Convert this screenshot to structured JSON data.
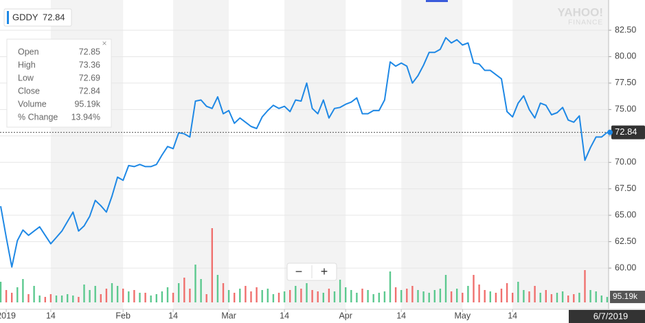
{
  "chart_data": {
    "type": "line",
    "categories": [
      null,
      "2019",
      null,
      null,
      null,
      null,
      null,
      null,
      null,
      "14",
      null,
      null,
      null,
      null,
      null,
      null,
      null,
      null,
      null,
      null,
      null,
      null,
      "Feb",
      null,
      null,
      null,
      null,
      null,
      null,
      null,
      null,
      "14",
      null,
      null,
      null,
      null,
      null,
      null,
      null,
      null,
      null,
      "Mar",
      null,
      null,
      null,
      null,
      null,
      null,
      null,
      null,
      null,
      "14",
      null,
      null,
      null,
      null,
      null,
      null,
      null,
      null,
      null,
      null,
      "Apr",
      null,
      null,
      null,
      null,
      null,
      null,
      null,
      null,
      null,
      "14",
      null,
      null,
      null,
      null,
      null,
      null,
      null,
      null,
      null,
      null,
      "May",
      null,
      null,
      null,
      null,
      null,
      null,
      null,
      null,
      "14",
      null,
      null,
      null,
      null,
      null,
      null,
      null,
      null,
      null,
      null,
      null,
      null,
      null,
      null,
      null,
      null,
      "6/7/2019"
    ],
    "series": [
      {
        "name": "GDDY",
        "color": "#1e88e5",
        "values": [
          65.85,
          62.9,
          60.1,
          62.6,
          63.6,
          63.1,
          63.5,
          63.9,
          63.1,
          62.3,
          62.9,
          63.5,
          64.4,
          65.3,
          63.5,
          64.0,
          64.9,
          66.4,
          65.9,
          65.3,
          66.8,
          68.6,
          68.3,
          69.7,
          69.6,
          69.8,
          69.6,
          69.6,
          69.8,
          70.7,
          71.5,
          71.3,
          72.8,
          72.7,
          72.4,
          75.8,
          75.9,
          75.3,
          75.1,
          76.2,
          74.6,
          74.9,
          73.7,
          74.2,
          73.8,
          73.4,
          73.2,
          74.3,
          74.9,
          75.4,
          75.1,
          75.3,
          74.8,
          75.9,
          75.8,
          77.5,
          75.1,
          74.6,
          75.9,
          74.2,
          75.1,
          75.2,
          75.5,
          75.7,
          76.1,
          74.6,
          74.6,
          74.9,
          74.9,
          75.9,
          79.5,
          79.1,
          79.4,
          79.1,
          77.5,
          78.2,
          79.2,
          80.4,
          80.4,
          80.7,
          81.8,
          81.3,
          81.6,
          81.1,
          81.3,
          79.4,
          79.3,
          78.7,
          78.7,
          78.3,
          77.9,
          74.8,
          74.3,
          75.6,
          76.3,
          75.0,
          74.2,
          75.6,
          75.4,
          74.5,
          74.7,
          75.2,
          74.0,
          73.8,
          74.4,
          70.2,
          71.4,
          72.4,
          72.4,
          72.84
        ]
      }
    ],
    "volume": {
      "values": [
        360000,
        216000,
        168000,
        264000,
        408000,
        144000,
        288000,
        120000,
        96000,
        144000,
        120000,
        120000,
        144000,
        120000,
        96000,
        312000,
        216000,
        288000,
        144000,
        240000,
        336000,
        288000,
        240000,
        192000,
        216000,
        168000,
        168000,
        120000,
        144000,
        192000,
        264000,
        168000,
        336000,
        432000,
        240000,
        660000,
        408000,
        144000,
        1296000,
        480000,
        336000,
        216000,
        168000,
        240000,
        288000,
        192000,
        264000,
        216000,
        240000,
        144000,
        168000,
        192000,
        216000,
        288000,
        240000,
        336000,
        216000,
        192000,
        168000,
        240000,
        192000,
        396000,
        264000,
        216000,
        168000,
        240000,
        216000,
        144000,
        168000,
        192000,
        540000,
        264000,
        216000,
        240000,
        288000,
        216000,
        192000,
        168000,
        216000,
        240000,
        480000,
        192000,
        240000,
        168000,
        288000,
        480000,
        312000,
        216000,
        192000,
        168000,
        240000,
        336000,
        168000,
        360000,
        216000,
        192000,
        288000,
        168000,
        216000,
        144000,
        168000,
        192000,
        120000,
        144000,
        168000,
        564000,
        216000,
        192000,
        120000,
        95190
      ],
      "up_color": "#5cc98f",
      "down_color": "#f0706e",
      "vlim": [
        0,
        1320000
      ],
      "vticks": [
        {
          "value": 95190,
          "label": "95.19k"
        }
      ]
    },
    "ylim": [
      56.43,
      85.36
    ],
    "yticks": [
      {
        "value": 60,
        "label": "60.00"
      },
      {
        "value": 62.5,
        "label": "62.50"
      },
      {
        "value": 65,
        "label": "65.00"
      },
      {
        "value": 67.5,
        "label": "67.50"
      },
      {
        "value": 70,
        "label": "70.00"
      },
      {
        "value": 72.5,
        "label": "72.50"
      },
      {
        "value": 75,
        "label": "75.00"
      },
      {
        "value": 77.5,
        "label": "77.50"
      },
      {
        "value": 80,
        "label": "80.00"
      },
      {
        "value": 82.5,
        "label": "82.50"
      }
    ],
    "grid": true
  },
  "tooltip": {
    "rows": [
      [
        "Open",
        "72.85"
      ],
      [
        "High",
        "73.36"
      ],
      [
        "Low",
        "72.69"
      ],
      [
        "Close",
        "72.84"
      ],
      [
        "Volume",
        "95.19k"
      ],
      [
        "% Change",
        "13.94%"
      ]
    ],
    "close": "×"
  },
  "logo": {
    "brand": "YAHOO!",
    "sub": "FINANCE"
  },
  "zoom": {
    "minus": "−",
    "plus": "+"
  }
}
